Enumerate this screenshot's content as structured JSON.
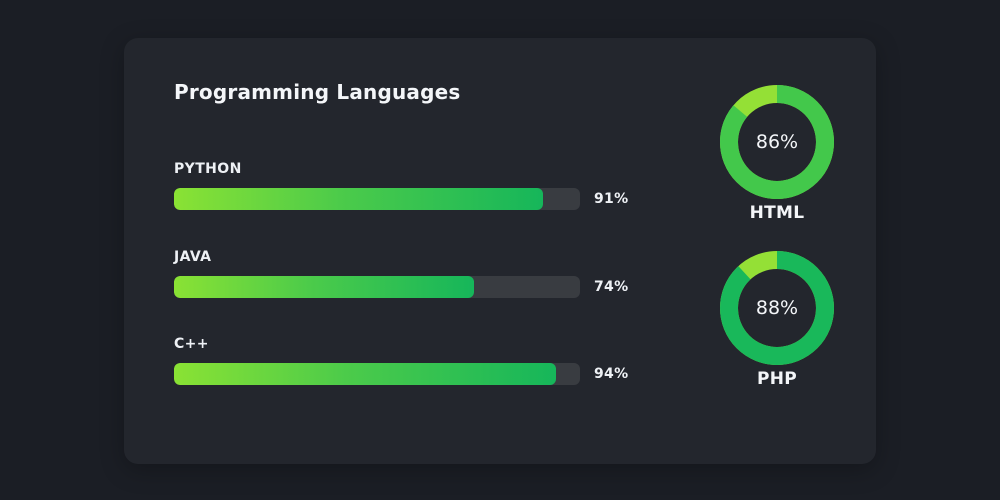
{
  "card": {
    "title": "Programming Languages"
  },
  "skills": [
    {
      "name": "PYTHON",
      "value": 91,
      "label": "91%"
    },
    {
      "name": "JAVA",
      "value": 74,
      "label": "74%"
    },
    {
      "name": "C++",
      "value": 94,
      "label": "94%"
    }
  ],
  "donuts": [
    {
      "name": "HTML",
      "value": 86,
      "label": "86%"
    },
    {
      "name": "PHP",
      "value": 88,
      "label": "88%"
    }
  ],
  "colors": {
    "background": "#1b1e25",
    "card": "#23262d",
    "track": "#393c41",
    "bar_start": "#8ae234",
    "bar_end": "#16b65a",
    "html_ring": "#43c84b",
    "php_ring": "#19b85a",
    "ring_highlight": "#94e036"
  }
}
